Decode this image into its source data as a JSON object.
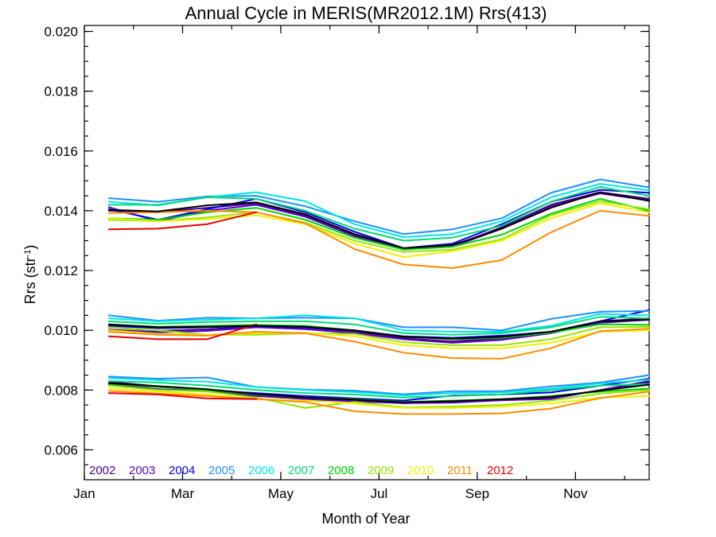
{
  "chart_data": {
    "type": "line",
    "title": "Annual Cycle in MERIS(MR2012.1M) Rrs(413)",
    "xlabel": "Month of Year",
    "ylabel_main": "Rrs (str",
    "ylabel_sup": "-1",
    "ylabel_close": ")",
    "xlim": [
      1,
      12.5
    ],
    "ylim": [
      0.005,
      0.0202
    ],
    "x_ticks": [
      {
        "value": 1,
        "label": "Jan"
      },
      {
        "value": 3,
        "label": "Mar"
      },
      {
        "value": 5,
        "label": "May"
      },
      {
        "value": 7,
        "label": "Jul"
      },
      {
        "value": 9,
        "label": "Sep"
      },
      {
        "value": 11,
        "label": "Nov"
      }
    ],
    "y_ticks": [
      {
        "value": 0.006,
        "label": "0.006"
      },
      {
        "value": 0.008,
        "label": "0.008"
      },
      {
        "value": 0.01,
        "label": "0.010"
      },
      {
        "value": 0.012,
        "label": "0.012"
      },
      {
        "value": 0.014,
        "label": "0.014"
      },
      {
        "value": 0.016,
        "label": "0.016"
      },
      {
        "value": 0.018,
        "label": "0.018"
      },
      {
        "value": 0.02,
        "label": "0.020"
      }
    ],
    "legend_position": "bottom-left",
    "x": [
      1.5,
      2.5,
      3.5,
      4.5,
      5.5,
      6.5,
      7.5,
      8.5,
      9.5,
      10.5,
      11.5,
      12.5
    ],
    "series": [
      {
        "name": "2002",
        "color": "#4b0082",
        "groups": [
          [
            0.014,
            0.01395,
            0.0141,
            0.01425,
            0.01385,
            0.0132,
            0.01272,
            0.01282,
            0.01345,
            0.0142,
            0.01462,
            0.0144
          ],
          [
            0.0101,
            0.00998,
            0.01003,
            0.01013,
            0.01009,
            0.00996,
            0.00973,
            0.00963,
            0.00973,
            0.00992,
            0.0103,
            0.0104
          ],
          [
            0.00828,
            0.00812,
            0.00798,
            0.00786,
            0.0077,
            0.00764,
            0.00756,
            0.00762,
            0.00768,
            0.00772,
            0.008,
            0.0083
          ]
        ]
      },
      {
        "name": "2003",
        "color": "#5a00c8",
        "groups": [
          [
            0.01412,
            0.01365,
            0.014,
            0.0142,
            0.0138,
            0.01315,
            0.0127,
            0.0128,
            0.0134,
            0.01415,
            0.01458,
            0.01435
          ],
          [
            0.01002,
            0.00993,
            0.00998,
            0.0101,
            0.01004,
            0.0099,
            0.0097,
            0.00958,
            0.00968,
            0.0099,
            0.01025,
            0.01035
          ],
          [
            0.00818,
            0.00803,
            0.00796,
            0.0078,
            0.0077,
            0.00762,
            0.00756,
            0.00758,
            0.00766,
            0.0077,
            0.008,
            0.00825
          ]
        ]
      },
      {
        "name": "2004",
        "color": "#0000e6",
        "groups": [
          [
            0.01405,
            0.0137,
            0.01405,
            0.0144,
            0.01395,
            0.0133,
            0.01275,
            0.0129,
            0.01355,
            0.0143,
            0.0147,
            0.0146
          ],
          [
            0.01015,
            0.01007,
            0.0101,
            0.01015,
            0.0101,
            0.01,
            0.0098,
            0.00975,
            0.00982,
            0.00995,
            0.0103,
            0.01068
          ],
          [
            0.00822,
            0.0081,
            0.008,
            0.0079,
            0.0078,
            0.00772,
            0.00765,
            0.00782,
            0.00785,
            0.00792,
            0.00815,
            0.00838
          ]
        ]
      },
      {
        "name": "2005",
        "color": "#1e90ff",
        "groups": [
          [
            0.01442,
            0.0143,
            0.01448,
            0.0145,
            0.01415,
            0.01365,
            0.01322,
            0.01338,
            0.01375,
            0.0146,
            0.01505,
            0.01478
          ],
          [
            0.0105,
            0.01032,
            0.01042,
            0.0104,
            0.01042,
            0.0104,
            0.0101,
            0.0101,
            0.01,
            0.01038,
            0.01062,
            0.01065
          ],
          [
            0.00845,
            0.00838,
            0.00842,
            0.0081,
            0.00802,
            0.00798,
            0.00786,
            0.00796,
            0.00796,
            0.00812,
            0.00825,
            0.0085
          ]
        ]
      },
      {
        "name": "2006",
        "color": "#00e6e6",
        "groups": [
          [
            0.0143,
            0.01418,
            0.01445,
            0.01462,
            0.01432,
            0.01355,
            0.01312,
            0.01322,
            0.01365,
            0.01445,
            0.0149,
            0.01468
          ],
          [
            0.0104,
            0.0103,
            0.01035,
            0.0104,
            0.0105,
            0.0104,
            0.01,
            0.00995,
            0.00995,
            0.01015,
            0.01055,
            0.0105
          ],
          [
            0.0084,
            0.00833,
            0.00828,
            0.0081,
            0.008,
            0.00793,
            0.00782,
            0.0079,
            0.00792,
            0.00805,
            0.00822,
            0.00835
          ]
        ]
      },
      {
        "name": "2007",
        "color": "#00dc78",
        "groups": [
          [
            0.0142,
            0.0142,
            0.01445,
            0.0144,
            0.014,
            0.0134,
            0.013,
            0.0131,
            0.0135,
            0.0143,
            0.0148,
            0.0145
          ],
          [
            0.0103,
            0.01022,
            0.01028,
            0.0103,
            0.0103,
            0.0102,
            0.0099,
            0.00985,
            0.0099,
            0.0101,
            0.01045,
            0.0104
          ],
          [
            0.0083,
            0.00825,
            0.00815,
            0.008,
            0.0079,
            0.00785,
            0.00775,
            0.0078,
            0.00785,
            0.008,
            0.00815,
            0.0082
          ]
        ]
      },
      {
        "name": "2008",
        "color": "#00d200",
        "groups": [
          [
            0.01375,
            0.0137,
            0.01395,
            0.0141,
            0.0137,
            0.0131,
            0.0127,
            0.0128,
            0.0132,
            0.0139,
            0.0144,
            0.014
          ],
          [
            0.0102,
            0.01012,
            0.01015,
            0.01018,
            0.01015,
            0.01,
            0.00978,
            0.0097,
            0.00975,
            0.00992,
            0.0102,
            0.01018
          ],
          [
            0.0082,
            0.0081,
            0.008,
            0.00785,
            0.00775,
            0.0077,
            0.0076,
            0.00765,
            0.0077,
            0.0078,
            0.00795,
            0.00805
          ]
        ]
      },
      {
        "name": "2009",
        "color": "#96e600",
        "groups": [
          [
            0.0137,
            0.01365,
            0.01378,
            0.01395,
            0.0136,
            0.013,
            0.01262,
            0.0127,
            0.01305,
            0.01385,
            0.01432,
            0.01405
          ],
          [
            0.0101,
            0.01,
            0.00985,
            0.00985,
            0.0099,
            0.00988,
            0.0096,
            0.0095,
            0.0095,
            0.0097,
            0.0101,
            0.01012
          ],
          [
            0.00815,
            0.008,
            0.00795,
            0.00775,
            0.0074,
            0.0076,
            0.00742,
            0.00745,
            0.0075,
            0.00765,
            0.00788,
            0.008
          ]
        ]
      },
      {
        "name": "2010",
        "color": "#f0f000",
        "groups": [
          [
            0.01375,
            0.01365,
            0.01372,
            0.01385,
            0.01355,
            0.0129,
            0.01245,
            0.01265,
            0.013,
            0.01375,
            0.01425,
            0.01395
          ],
          [
            0.01,
            0.00988,
            0.00985,
            0.0099,
            0.00992,
            0.0098,
            0.0095,
            0.0094,
            0.0094,
            0.00958,
            0.00995,
            0.01
          ],
          [
            0.00805,
            0.00795,
            0.00785,
            0.0077,
            0.00765,
            0.00755,
            0.0074,
            0.0074,
            0.00745,
            0.00755,
            0.00775,
            0.0078
          ]
        ]
      },
      {
        "name": "2011",
        "color": "#ff8c00",
        "groups": [
          [
            0.01392,
            0.01395,
            0.014,
            0.01395,
            0.01358,
            0.01272,
            0.0122,
            0.01208,
            0.01235,
            0.01328,
            0.014,
            0.01383
          ],
          [
            0.00995,
            0.00985,
            0.00982,
            0.00995,
            0.0099,
            0.00962,
            0.00925,
            0.00907,
            0.00905,
            0.0094,
            0.00997,
            0.01005
          ],
          [
            0.00797,
            0.00788,
            0.0078,
            0.0077,
            0.0076,
            0.00729,
            0.0072,
            0.0072,
            0.00722,
            0.00738,
            0.00773,
            0.00795
          ]
        ]
      },
      {
        "name": "2012",
        "color": "#e60000",
        "groups": [
          [
            0.01338,
            0.0134,
            0.01355,
            0.01395
          ],
          [
            0.0098,
            0.0097,
            0.0097,
            0.0102
          ],
          [
            0.0079,
            0.00785,
            0.00772,
            0.0077
          ]
        ]
      },
      {
        "color": "#000000",
        "width": 3,
        "groups": [
          [
            0.01403,
            0.01398,
            0.01418,
            0.01428,
            0.01388,
            0.01322,
            0.01275,
            0.01285,
            0.0134,
            0.0141,
            0.01462,
            0.01433
          ],
          [
            0.0102,
            0.0101,
            0.01012,
            0.01015,
            0.01012,
            0.01,
            0.00978,
            0.00972,
            0.00978,
            0.00995,
            0.0103,
            0.01036
          ],
          [
            0.00823,
            0.00813,
            0.00803,
            0.00787,
            0.00775,
            0.00768,
            0.00759,
            0.00763,
            0.00769,
            0.00777,
            0.00798,
            0.00818
          ]
        ]
      }
    ]
  }
}
